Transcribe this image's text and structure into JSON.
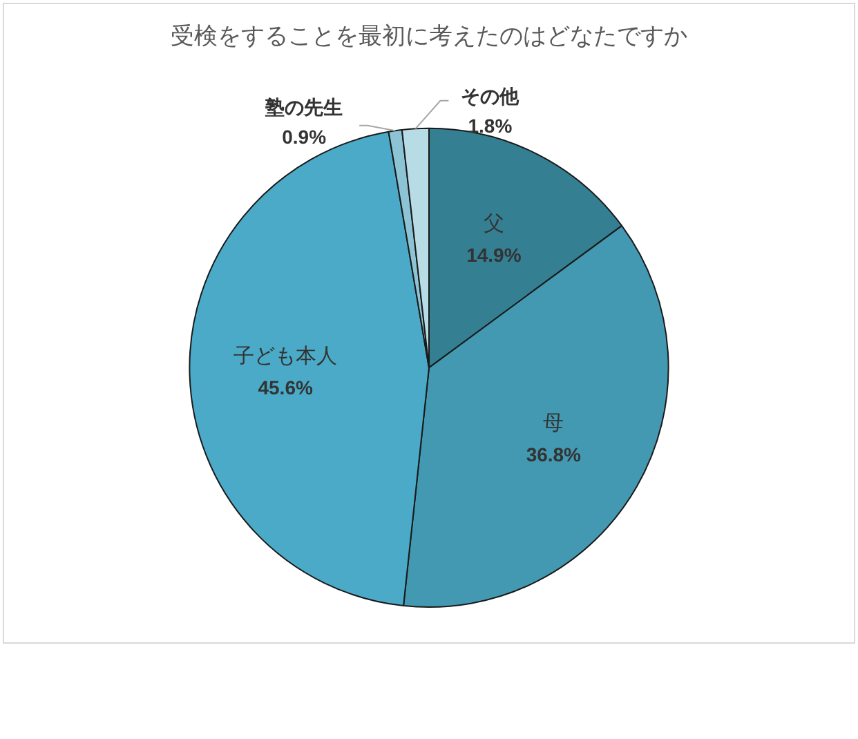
{
  "chart_data": {
    "type": "pie",
    "title": "受検をすることを最初に考えたのはどなたですか",
    "categories": [
      "父",
      "母",
      "子ども本人",
      "塾の先生",
      "その他"
    ],
    "values": [
      14.9,
      36.8,
      45.6,
      0.9,
      1.8
    ],
    "colors": [
      "#357f93",
      "#4399b1",
      "#4aaac8",
      "#8cc4d6",
      "#b8dce6"
    ],
    "value_labels": [
      "14.9%",
      "36.8%",
      "45.6%",
      "0.9%",
      "1.8%"
    ],
    "legend": false
  }
}
